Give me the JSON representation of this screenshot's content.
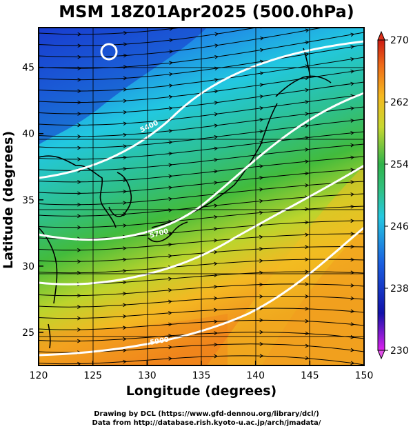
{
  "title": "MSM 18Z01Apr2025 (500.0hPa)",
  "xlabel": "Longitude (degrees)",
  "ylabel": "Latitude  (degrees)",
  "credits": [
    "Drawing by DCL (https://www.gfd-dennou.org/library/dcl/)",
    "Data from http://database.rish.kyoto-u.ac.jp/arch/jmadata/"
  ],
  "map": {
    "lon_range": [
      120,
      150
    ],
    "lat_range": [
      22.5,
      48
    ],
    "lon_ticks": [
      "120",
      "125",
      "130",
      "135",
      "140",
      "145",
      "150"
    ],
    "lat_ticks": [
      "25",
      "30",
      "35",
      "40",
      "45"
    ],
    "lon_tick_values": [
      120,
      125,
      130,
      135,
      140,
      145,
      150
    ],
    "lat_tick_values": [
      25,
      30,
      35,
      40,
      45
    ],
    "grid": true,
    "field": "temperature (shaded) with streamlines and contours"
  },
  "colorbar": {
    "range": [
      230,
      270
    ],
    "tick_labels": [
      "270",
      "262",
      "254",
      "246",
      "238",
      "230"
    ],
    "tick_values": [
      270,
      262,
      254,
      246,
      238,
      230
    ],
    "colors": [
      "#dd22ee",
      "#1111aa",
      "#1a5fe0",
      "#25c8e0",
      "#30c080",
      "#2fb34a",
      "#c8d830",
      "#f5b820",
      "#ee6a18",
      "#cc1b12"
    ]
  },
  "contour_labels": [
    "5400",
    "5700",
    "5900"
  ]
}
